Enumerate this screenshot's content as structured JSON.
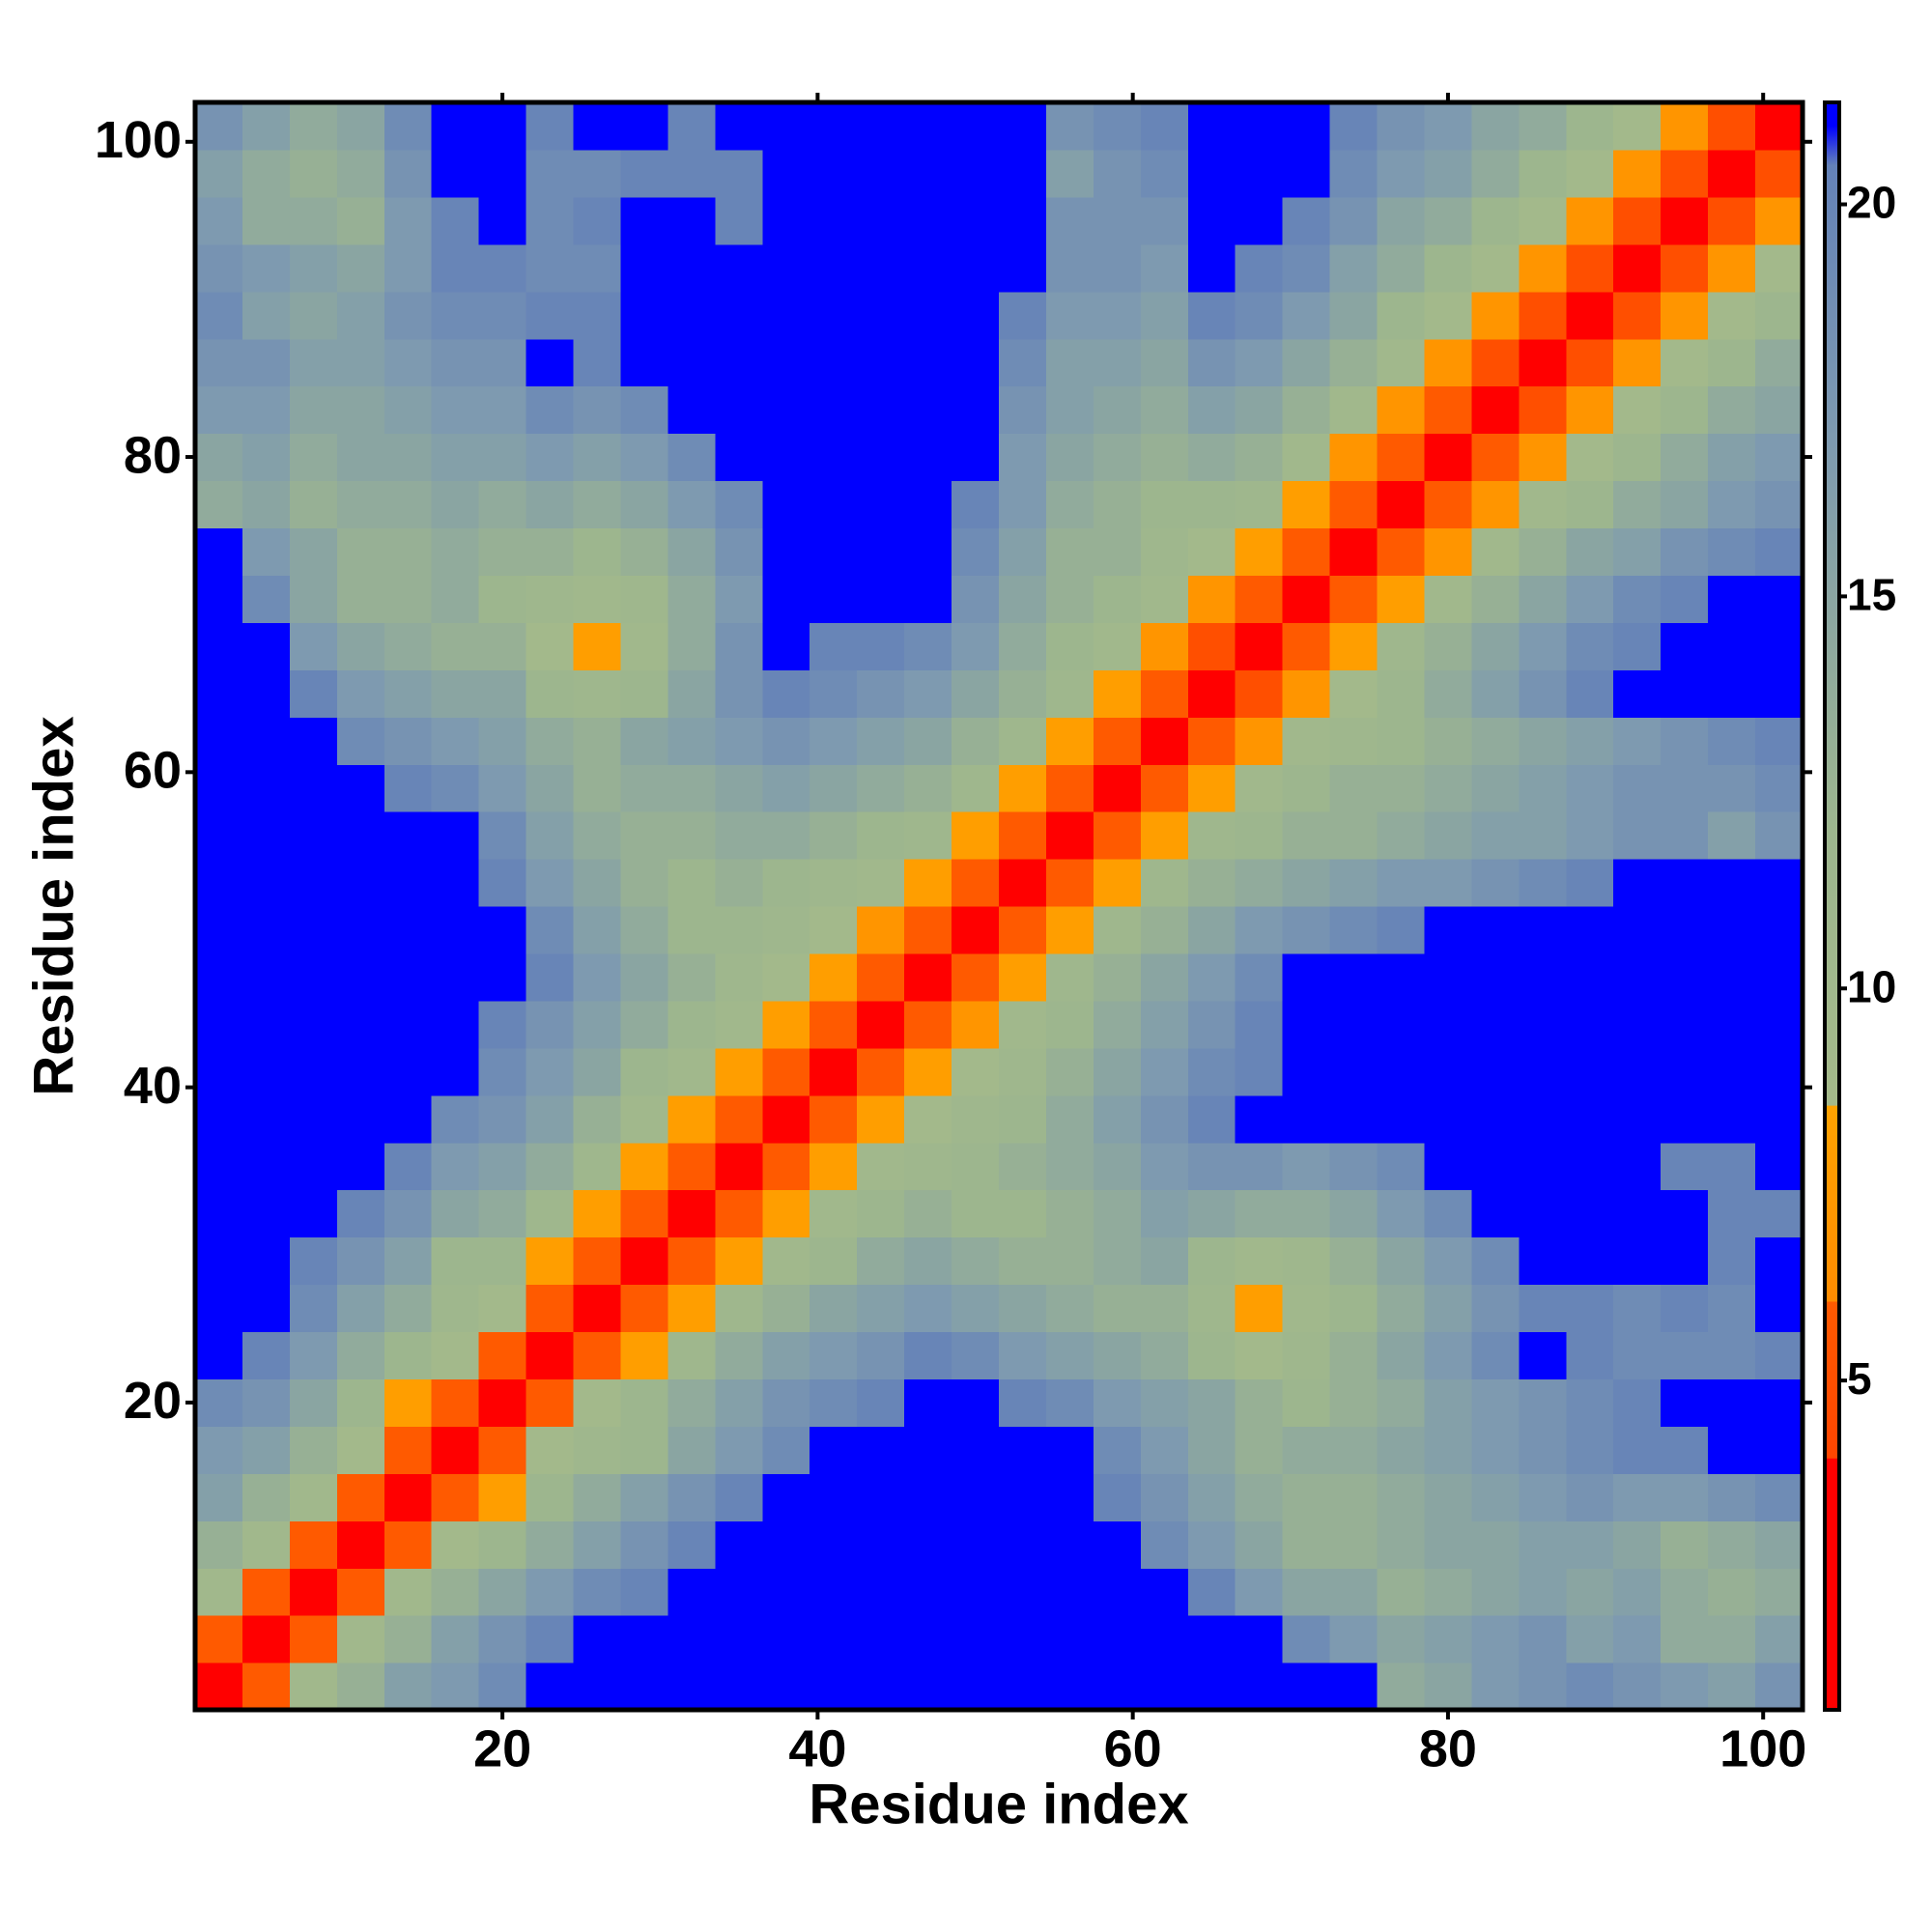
{
  "chart_data": {
    "type": "heatmap",
    "x_label": "Residue index",
    "y_label": "Residue index",
    "xlim": [
      0.5,
      102.5
    ],
    "ylim": [
      0.5,
      102.5
    ],
    "xticks": [
      20,
      40,
      60,
      80,
      100
    ],
    "yticks": [
      20,
      40,
      60,
      80,
      100
    ],
    "bins": [
      0.5,
      3.5,
      6.5,
      9.5,
      12.5,
      15.5,
      18.5,
      21.5,
      24.5,
      27.5,
      30.5,
      33.5,
      36.5,
      39.5,
      42.5,
      45.5,
      48.5,
      51.5,
      54.5,
      57.5,
      60.5,
      63.5,
      66.5,
      69.5,
      72.5,
      75.5,
      78.5,
      81.5,
      84.5,
      87.5,
      90.5,
      93.5,
      96.5,
      99.5,
      102.5
    ],
    "symmetric": true,
    "values": [
      [
        3.8,
        6,
        10,
        13,
        16,
        17,
        19,
        22,
        22,
        22,
        22,
        22,
        22,
        22,
        22,
        22,
        22,
        22,
        22,
        22,
        22,
        22,
        22,
        22,
        21,
        14,
        15,
        17,
        18,
        19,
        18,
        17,
        16,
        18
      ],
      [
        3.8,
        6,
        10,
        13,
        16,
        18,
        20,
        22,
        22,
        22,
        22,
        22,
        22,
        22,
        22,
        22,
        22,
        22,
        22,
        22,
        22,
        22,
        19,
        17,
        15,
        16,
        17,
        18,
        16,
        17,
        14,
        14,
        16
      ],
      [
        3.8,
        6,
        10,
        13,
        15,
        17,
        19,
        20,
        22,
        22,
        22,
        22,
        22,
        22,
        22,
        22,
        22,
        22,
        22,
        20,
        17,
        15,
        15,
        13,
        14,
        15,
        16,
        15,
        16,
        14,
        13,
        14
      ],
      [
        3.8,
        6,
        9,
        12,
        14,
        16,
        18,
        20,
        22,
        22,
        22,
        22,
        22,
        22,
        22,
        22,
        21,
        19,
        17,
        15,
        13,
        13,
        14,
        15,
        15,
        16,
        16,
        15,
        13,
        14,
        15
      ],
      [
        3.8,
        6,
        8,
        12,
        14,
        16,
        18,
        20,
        22,
        22,
        22,
        22,
        22,
        22,
        22,
        20,
        18,
        16,
        14,
        13,
        13,
        14,
        15,
        16,
        17,
        18,
        17,
        17,
        18,
        19
      ],
      [
        3.8,
        6,
        9,
        11,
        12,
        15,
        17,
        19,
        21,
        22,
        22,
        22,
        22,
        21,
        19,
        17,
        15,
        13,
        14,
        14,
        15,
        16,
        17,
        18,
        19,
        20,
        20,
        21,
        22
      ],
      [
        3.8,
        6,
        9,
        12,
        14,
        16,
        18,
        19,
        20,
        22,
        22,
        20,
        19,
        17,
        16,
        15,
        13,
        12,
        13,
        14,
        16,
        17,
        18,
        19,
        20,
        21,
        22,
        22
      ],
      [
        3.8,
        6,
        8,
        11,
        14,
        16,
        17,
        18,
        20,
        19,
        17,
        16,
        15,
        14,
        12,
        9,
        11,
        13,
        15,
        17,
        19,
        21,
        20,
        19,
        19,
        19,
        20
      ],
      [
        3.8,
        6,
        8,
        11,
        13,
        15,
        16,
        17,
        16,
        15,
        14,
        13,
        13,
        11,
        8,
        10,
        12,
        14,
        16,
        18,
        20,
        20,
        19,
        20,
        19,
        21
      ],
      [
        3.8,
        6,
        8,
        10,
        12,
        14,
        15,
        14,
        13,
        13,
        14,
        15,
        12,
        10,
        11,
        13,
        15,
        17,
        19,
        21,
        22,
        22,
        21,
        20,
        21
      ],
      [
        3.8,
        6,
        8,
        10,
        12,
        13,
        12,
        12,
        13,
        14,
        16,
        15,
        14,
        14,
        15,
        17,
        19,
        21,
        22,
        22,
        22,
        22,
        20,
        20
      ],
      [
        3.8,
        6,
        8,
        10,
        11,
        12,
        13,
        14,
        15,
        17,
        18,
        18,
        17,
        18,
        19,
        21,
        22,
        22,
        22,
        21,
        20,
        20,
        21
      ],
      [
        3.8,
        6,
        8,
        9,
        11,
        12,
        14,
        16,
        18,
        20,
        21,
        22,
        21,
        21,
        22,
        22,
        22,
        22,
        22,
        22,
        22,
        22
      ],
      [
        3.8,
        6,
        8,
        9,
        11,
        13,
        15,
        17,
        19,
        20,
        22,
        22,
        22,
        22,
        22,
        22,
        22,
        22,
        22,
        22,
        22
      ],
      [
        3.8,
        6,
        7,
        10,
        12,
        14,
        16,
        18,
        20,
        21,
        22,
        22,
        22,
        22,
        22,
        22,
        22,
        22,
        22,
        22
      ],
      [
        3.8,
        6,
        8,
        11,
        13,
        15,
        17,
        19,
        21,
        22,
        22,
        22,
        22,
        22,
        22,
        22,
        22,
        22,
        22
      ],
      [
        3.8,
        6,
        8,
        11,
        13,
        15,
        17,
        18,
        19,
        20,
        21,
        22,
        22,
        22,
        22,
        22,
        22,
        22
      ],
      [
        3.8,
        6,
        8,
        11,
        13,
        14,
        15,
        16,
        17,
        17,
        18,
        19,
        20,
        21,
        21,
        22,
        22
      ],
      [
        3.8,
        6,
        8,
        11,
        12,
        13,
        13,
        14,
        15,
        16,
        16,
        17,
        18,
        18,
        16,
        18
      ],
      [
        3.8,
        6,
        8,
        10,
        12,
        13,
        13,
        14,
        15,
        16,
        17,
        18,
        18,
        18,
        19
      ],
      [
        3.8,
        6,
        7,
        10,
        11,
        12,
        13,
        14,
        15,
        16,
        17,
        18,
        19,
        20
      ],
      [
        3.8,
        5,
        7,
        9,
        12,
        14,
        16,
        18,
        20,
        21,
        21,
        22,
        22
      ],
      [
        3.8,
        6,
        8,
        11,
        13,
        15,
        17,
        19,
        20,
        21,
        21,
        22
      ],
      [
        3.8,
        6,
        8,
        10,
        13,
        15,
        17,
        19,
        20,
        21,
        21
      ],
      [
        3.8,
        6,
        7,
        10,
        13,
        15,
        16,
        18,
        19,
        20
      ],
      [
        3.8,
        6,
        7,
        10,
        12,
        14,
        15,
        17,
        18
      ],
      [
        3.8,
        6,
        7,
        9,
        12,
        14,
        16,
        17
      ],
      [
        3.8,
        5,
        7,
        9,
        12,
        14,
        15
      ],
      [
        3.8,
        5,
        7,
        9,
        12,
        14
      ],
      [
        3.8,
        5,
        7,
        9,
        12
      ],
      [
        3.8,
        5,
        7,
        9
      ],
      [
        3.8,
        5,
        7
      ],
      [
        3.8,
        5
      ],
      [
        3.8
      ]
    ],
    "colorscale": [
      [
        0.8,
        "#ff0000"
      ],
      [
        4,
        "#ff0000"
      ],
      [
        4.01,
        "#ff4500"
      ],
      [
        6,
        "#ff5a00"
      ],
      [
        6.01,
        "#ff8c00"
      ],
      [
        8.5,
        "#ffa200"
      ],
      [
        8.51,
        "#a4b98a"
      ],
      [
        12,
        "#9db68e"
      ],
      [
        17,
        "#7e9ab0"
      ],
      [
        20.5,
        "#6482b8"
      ],
      [
        21,
        "#0000ff"
      ]
    ],
    "colorbar_lim": [
      0.8,
      21.3
    ],
    "colorbar_ticks": [
      5,
      10,
      15,
      20
    ]
  }
}
